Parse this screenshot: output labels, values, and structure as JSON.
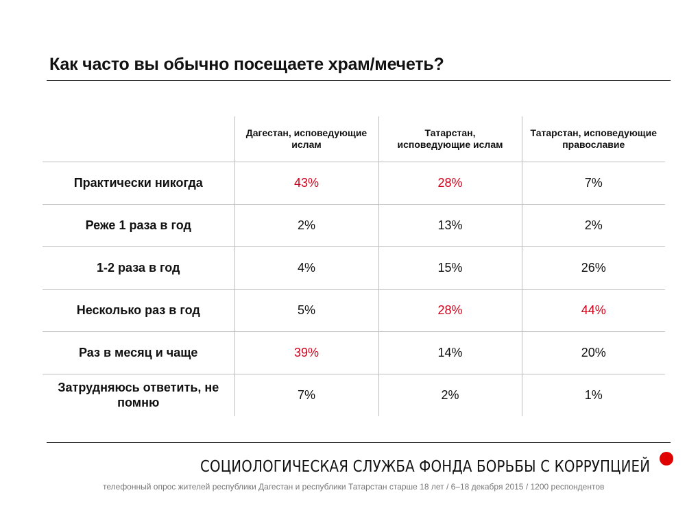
{
  "title": "Как часто вы обычно посещаете храм/мечеть?",
  "colors": {
    "highlight": "#d0021b",
    "text": "#111111",
    "dot": "#e00000"
  },
  "chart_data": {
    "type": "table",
    "title": "Как часто вы обычно посещаете храм/мечеть?",
    "columns": [
      "Дагестан, исповедующие ислам",
      "Татарстан, исповедующие ислам",
      "Татарстан, исповедующие православие"
    ],
    "rows": [
      {
        "label": "Практически никогда",
        "values": [
          "43%",
          "28%",
          "7%"
        ],
        "highlight": [
          true,
          true,
          false
        ]
      },
      {
        "label": "Реже 1 раза в год",
        "values": [
          "2%",
          "13%",
          "2%"
        ],
        "highlight": [
          false,
          false,
          false
        ]
      },
      {
        "label": "1-2 раза в год",
        "values": [
          "4%",
          "15%",
          "26%"
        ],
        "highlight": [
          false,
          false,
          false
        ]
      },
      {
        "label": "Несколько раз в год",
        "values": [
          "5%",
          "28%",
          "44%"
        ],
        "highlight": [
          false,
          true,
          true
        ]
      },
      {
        "label": "Раз в месяц и чаще",
        "values": [
          "39%",
          "14%",
          "20%"
        ],
        "highlight": [
          true,
          false,
          false
        ]
      },
      {
        "label": "Затрудняюсь ответить, не помню",
        "values": [
          "7%",
          "2%",
          "1%"
        ],
        "highlight": [
          false,
          false,
          false
        ]
      }
    ]
  },
  "footer": {
    "organization": "СОЦИОЛОГИЧЕСКАЯ СЛУЖБА ФОНДА БОРЬБЫ С КОРРУПЦИЕЙ",
    "note": "телефонный опрос жителей республики Дагестан и республики Татарстан старше 18 лет / 6–18 декабря 2015 / 1200 респондентов"
  }
}
